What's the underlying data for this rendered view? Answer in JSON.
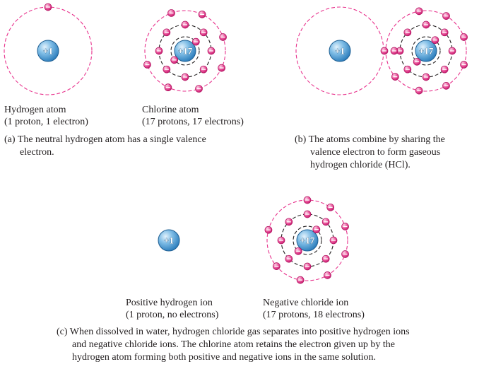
{
  "colors": {
    "nucleus": "#3e94cf",
    "nucleus_highlight": "#cfe8f8",
    "orbit": "#e8338d",
    "inner_orbit": "#231f20",
    "electron": "#e8338d",
    "electron_highlight": "#f9c6de"
  },
  "panel_a": {
    "hydrogen_nucleus": "+1",
    "chlorine_nucleus": "+17",
    "hydrogen_label": [
      "Hydrogen atom",
      "(1 proton, 1 electron)"
    ],
    "chlorine_label": [
      "Chlorine atom",
      "(17 protons, 17 electrons)"
    ],
    "caption": [
      "(a) The neutral hydrogen atom has a single valence",
      "electron."
    ]
  },
  "panel_b": {
    "hydrogen_nucleus": "+1",
    "chlorine_nucleus": "+17",
    "caption": [
      "(b) The atoms combine by sharing the",
      "valence electron to form gaseous",
      "hydrogen chloride (HCl)."
    ]
  },
  "panel_c": {
    "hydrogen_nucleus": "+1",
    "chlorine_nucleus": "+17",
    "hydrogen_label": [
      "Positive hydrogen ion",
      "(1 proton, no electrons)"
    ],
    "chloride_label": [
      "Negative chloride ion",
      "(17 protons, 18 electrons)"
    ],
    "caption": [
      "(c)  When dissolved in water, hydrogen chloride gas separates into positive hydrogen ions",
      "and negative chloride ions. The chlorine atom retains the electron given up by the",
      "hydrogen atom forming both positive and negative ions in the same solution."
    ]
  }
}
